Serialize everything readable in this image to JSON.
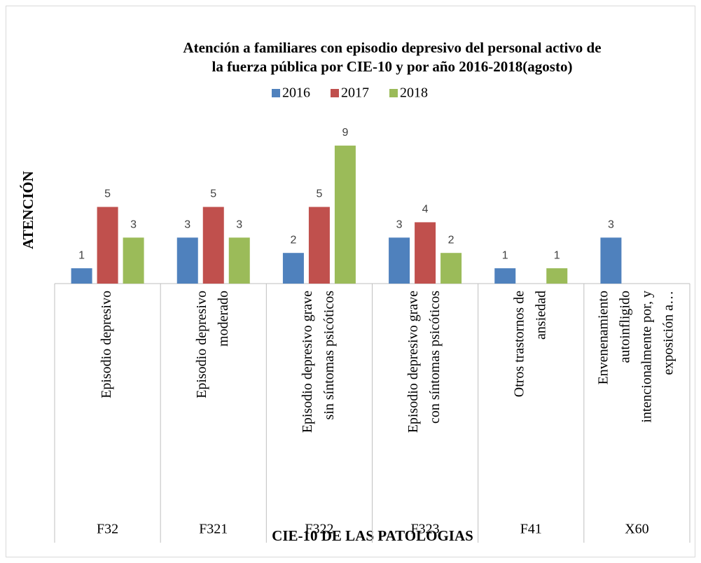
{
  "chart_data": {
    "type": "bar",
    "title": [
      "Atención a familiares con episodio depresivo del  personal activo de",
      "la fuerza pública por CIE-10  y por año 2016-2018(agosto)"
    ],
    "y_label": "ATENCIÓN",
    "x_label": "CIE-10 DE LAS PATOLOGIAS",
    "categories": [
      "F32",
      "F321",
      "F322",
      "F323",
      "F41",
      "X60"
    ],
    "category_descriptions": [
      [
        "Episodio depresivo"
      ],
      [
        "Episodio depresivo",
        "moderado"
      ],
      [
        "Episodio depresivo grave",
        "sin síntomas psicóticos"
      ],
      [
        "Episodio depresivo grave",
        "con síntomas psicóticos"
      ],
      [
        "Otros trastornos de",
        "ansiedad"
      ],
      [
        "Envenenamiento",
        "autoinfligido",
        "intencionalmente por, y",
        "exposición a…"
      ]
    ],
    "series": [
      {
        "name": "2016",
        "color": "#4f81bd",
        "values": [
          1,
          3,
          2,
          3,
          1,
          3
        ]
      },
      {
        "name": "2017",
        "color": "#c0504d",
        "values": [
          5,
          5,
          5,
          4,
          null,
          null
        ]
      },
      {
        "name": "2018",
        "color": "#9bbb59",
        "values": [
          3,
          3,
          9,
          2,
          1,
          null
        ]
      }
    ],
    "ylim": [
      0,
      10
    ]
  }
}
